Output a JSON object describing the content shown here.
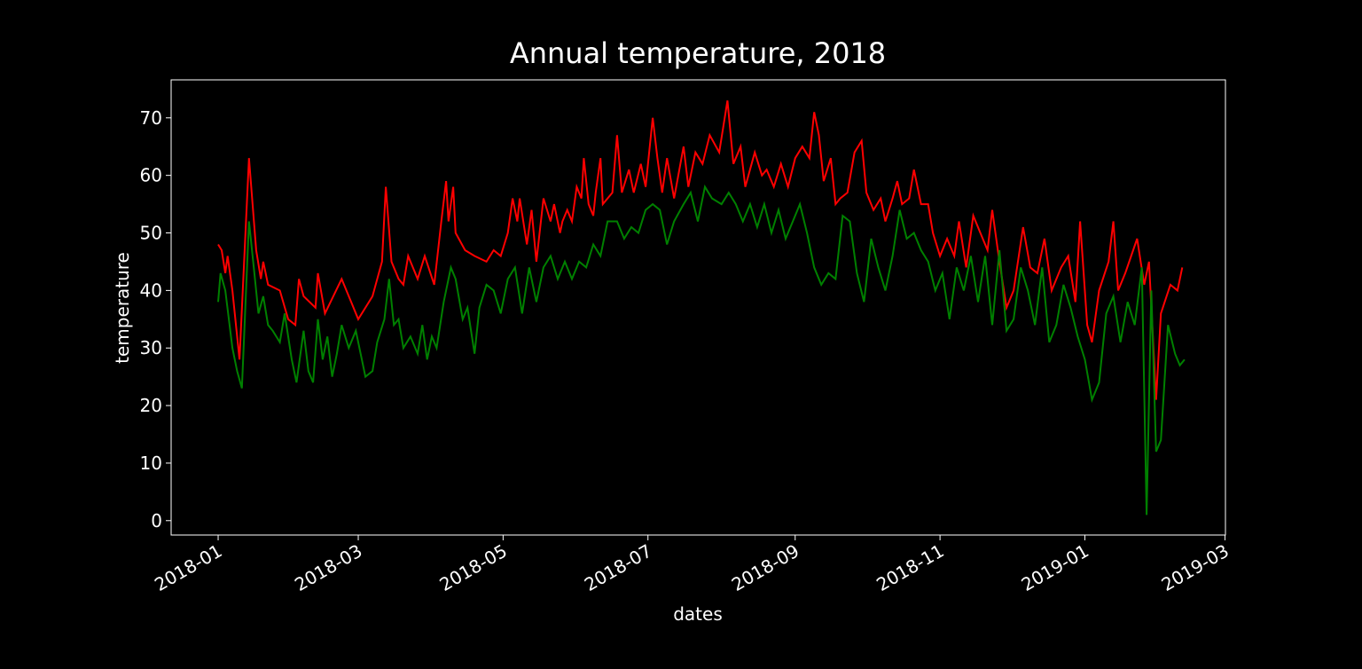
{
  "chart_data": {
    "type": "line",
    "title": "Annual temperature, 2018",
    "x_label": "dates",
    "y_label": "temperature",
    "xlim": [
      -19.8,
      424.2
    ],
    "ylim": [
      -2.5,
      76.6
    ],
    "xticks": [
      {
        "value": 0,
        "label": "2018-01"
      },
      {
        "value": 59,
        "label": "2018-03"
      },
      {
        "value": 120,
        "label": "2018-05"
      },
      {
        "value": 181,
        "label": "2018-07"
      },
      {
        "value": 243,
        "label": "2018-09"
      },
      {
        "value": 304,
        "label": "2018-11"
      },
      {
        "value": 365,
        "label": "2019-01"
      },
      {
        "value": 424,
        "label": "2019-03"
      }
    ],
    "yticks": [
      0,
      10,
      20,
      30,
      40,
      50,
      60,
      70
    ],
    "series": [
      {
        "color": "#ff0000",
        "x": [
          0,
          1.5,
          3,
          4,
          6,
          9,
          13,
          16,
          18,
          19,
          21,
          26,
          29.5,
          32.5,
          34,
          36,
          41,
          42,
          45,
          52,
          56,
          59,
          65,
          69,
          70.6,
          73,
          76,
          78,
          80,
          84,
          87,
          91,
          94,
          96,
          97,
          99,
          100,
          104,
          108,
          113,
          116,
          119,
          122,
          124,
          126,
          127,
          130,
          132,
          134,
          137,
          140,
          141.5,
          144,
          145,
          147,
          149,
          151,
          153,
          154,
          156,
          158,
          159,
          161,
          162,
          166,
          168,
          170,
          173,
          175,
          178,
          180,
          183,
          185,
          187,
          189,
          192,
          196,
          198,
          201,
          204,
          207,
          211,
          214.5,
          217,
          220,
          222,
          226,
          229,
          231,
          234,
          237,
          240,
          243,
          246,
          249,
          251,
          253,
          255,
          258,
          260,
          262,
          265,
          268,
          271,
          273,
          276,
          279,
          281,
          284,
          286,
          288,
          291,
          293,
          296,
          299,
          301,
          304,
          307,
          310,
          312,
          315,
          318,
          321,
          324,
          326,
          329,
          332,
          335,
          339,
          342,
          345,
          348,
          351,
          355,
          358,
          361,
          363,
          366,
          368,
          371,
          375,
          377,
          379,
          382,
          387,
          390,
          392,
          395,
          397,
          401,
          404,
          406
        ],
        "values": [
          48,
          47,
          43,
          46,
          40,
          28,
          63,
          47,
          42,
          45,
          41,
          40,
          35,
          34,
          42,
          39,
          37,
          43,
          36,
          42,
          38,
          35,
          39,
          45,
          58,
          45,
          42,
          41,
          46,
          42,
          46,
          41,
          52,
          59,
          52,
          58,
          50,
          47,
          46,
          45,
          47,
          46,
          50,
          56,
          52,
          56,
          48,
          54,
          45,
          56,
          52,
          55,
          50,
          52,
          54,
          52,
          58,
          56,
          63,
          55,
          53,
          57,
          63,
          55,
          57,
          67,
          57,
          61,
          57,
          62,
          58,
          70,
          63,
          57,
          63,
          56,
          65,
          58,
          64,
          62,
          67,
          64,
          73,
          62,
          65,
          58,
          64,
          60,
          61,
          58,
          62,
          58,
          63,
          65,
          63,
          71,
          67,
          59,
          63,
          55,
          56,
          57,
          64,
          66,
          57,
          54,
          56,
          52,
          56,
          59,
          55,
          56,
          61,
          55,
          55,
          50,
          46,
          49,
          46,
          52,
          44,
          53,
          50,
          47,
          54,
          45,
          37,
          40,
          51,
          44,
          43,
          49,
          40,
          44,
          46,
          38,
          52,
          34,
          31,
          40,
          45,
          52,
          40,
          43,
          49,
          41,
          45,
          21,
          36,
          41,
          40,
          44
        ]
      },
      {
        "color": "#008000",
        "x": [
          0,
          1,
          3,
          6,
          8,
          10,
          13,
          15,
          17,
          19,
          21,
          23,
          26,
          28,
          31,
          33,
          36,
          38,
          40,
          42,
          44,
          46,
          48,
          50,
          52,
          55,
          58,
          60,
          62,
          65,
          67,
          70,
          72,
          74,
          76,
          78,
          81,
          84,
          86,
          88,
          90,
          92,
          95,
          98,
          100,
          103,
          105,
          108,
          110,
          113,
          116,
          119,
          122,
          125,
          128,
          131,
          134,
          137,
          140,
          143,
          146,
          149,
          152,
          155,
          158,
          161,
          164,
          168,
          171,
          174,
          177,
          180,
          183,
          186,
          189,
          192,
          196,
          199,
          202,
          205,
          208,
          212,
          215,
          218,
          221,
          224,
          227,
          230,
          233,
          236,
          239,
          242,
          245,
          248,
          251,
          254,
          257,
          260,
          263,
          266,
          269,
          272,
          275,
          278,
          281,
          284,
          287,
          290,
          293,
          296,
          299,
          302,
          305,
          308,
          311,
          314,
          317,
          320,
          323,
          326,
          329,
          332,
          335,
          338,
          341,
          344,
          347,
          350,
          353,
          356,
          359,
          362,
          365,
          368,
          371,
          374,
          377,
          380,
          383,
          386,
          389,
          391,
          393,
          395,
          397,
          400,
          403,
          405,
          407
        ],
        "values": [
          38,
          43,
          40,
          30,
          26,
          23,
          52,
          44,
          36,
          39,
          34,
          33,
          31,
          36,
          28,
          24,
          33,
          26,
          24,
          35,
          28,
          32,
          25,
          29,
          34,
          30,
          33,
          29,
          25,
          26,
          31,
          35,
          42,
          34,
          35,
          30,
          32,
          29,
          34,
          28,
          32,
          30,
          38,
          44,
          42,
          35,
          37,
          29,
          37,
          41,
          40,
          36,
          42,
          44,
          36,
          44,
          38,
          44,
          46,
          42,
          45,
          42,
          45,
          44,
          48,
          46,
          52,
          52,
          49,
          51,
          50,
          54,
          55,
          54,
          48,
          52,
          55,
          57,
          52,
          58,
          56,
          55,
          57,
          55,
          52,
          55,
          51,
          55,
          50,
          54,
          49,
          52,
          55,
          50,
          44,
          41,
          43,
          42,
          53,
          52,
          43,
          38,
          49,
          44,
          40,
          46,
          54,
          49,
          50,
          47,
          45,
          40,
          43,
          35,
          44,
          40,
          46,
          38,
          46,
          34,
          47,
          33,
          35,
          44,
          40,
          34,
          44,
          31,
          34,
          41,
          37,
          32,
          28,
          21,
          24,
          36,
          39,
          31,
          38,
          34,
          44,
          1,
          40,
          12,
          14,
          34,
          29,
          27,
          28
        ]
      }
    ]
  }
}
